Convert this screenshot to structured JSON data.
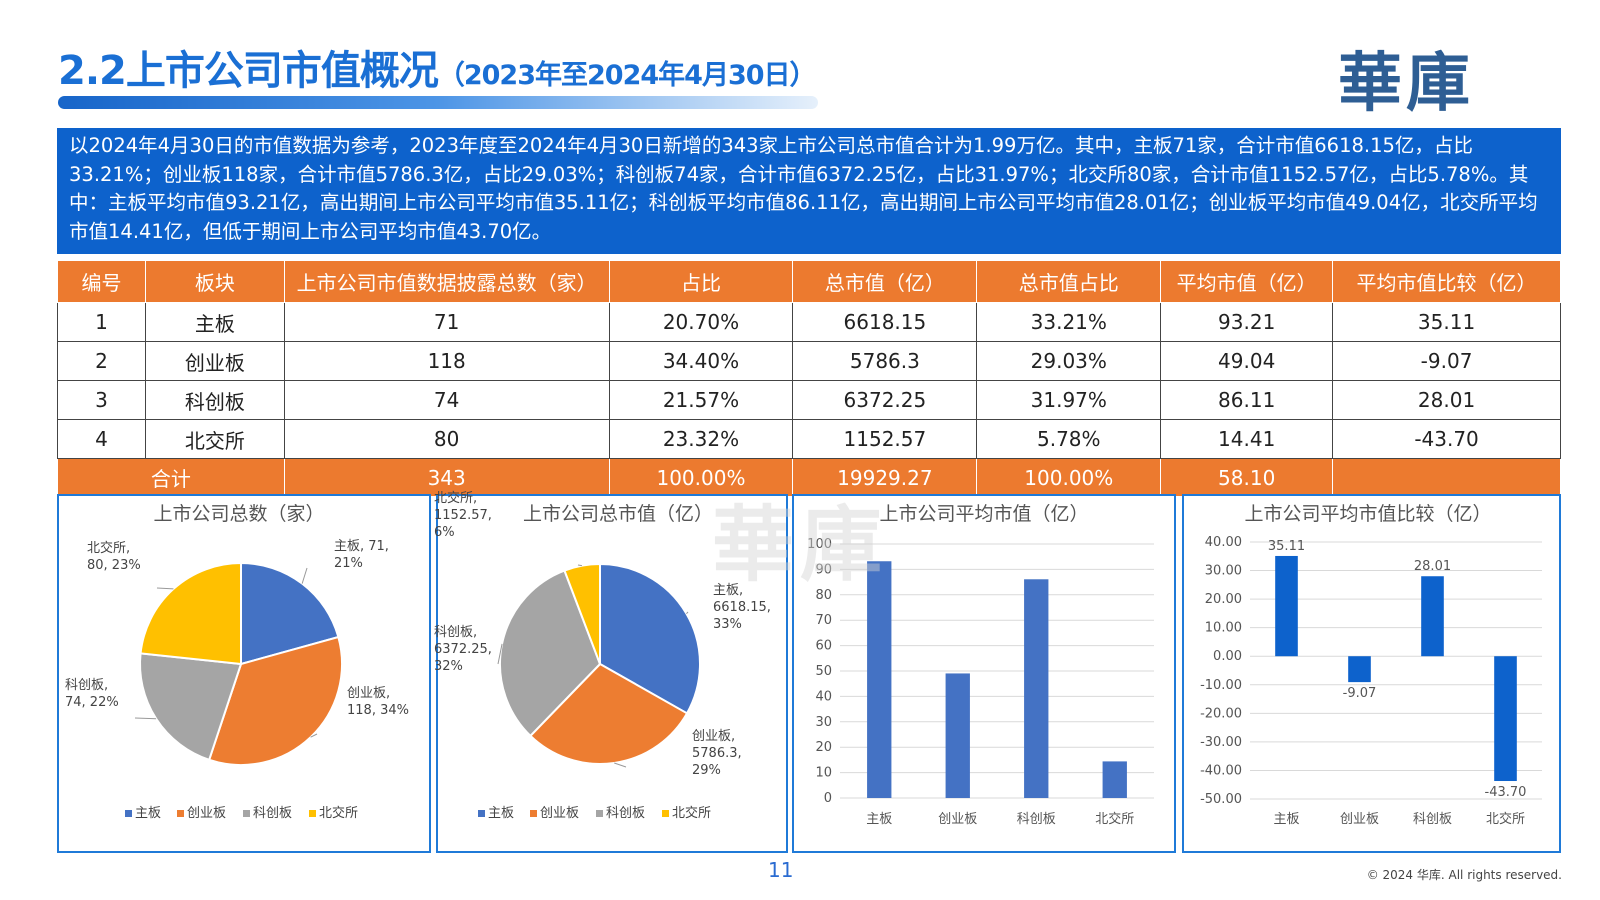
{
  "header": {
    "title": "2.2上市公司市值概况",
    "subtitle": "（2023年至2024年4月30日）",
    "logo": "華庫"
  },
  "summary": "以2024年4月30日的市值数据为参考，2023年度至2024年4月30日新增的343家上市公司总市值合计为1.99万亿。其中，主板71家，合计市值6618.15亿，占比33.21%；创业板118家，合计市值5786.3亿，占比29.03%；科创板74家，合计市值6372.25亿，占比31.97%；北交所80家，合计市值1152.57亿，占比5.78%。其中：主板平均市值93.21亿，高出期间上市公司平均市值35.11亿；科创板平均市值86.11亿，高出期间上市公司平均市值28.01亿；创业板平均市值49.04亿，北交所平均市值14.41亿，但低于期间上市公司平均市值43.70亿。",
  "table": {
    "headers": [
      "编号",
      "板块",
      "上市公司市值数据披露总数（家）",
      "占比",
      "总市值（亿）",
      "总市值占比",
      "平均市值（亿）",
      "平均市值比较（亿）"
    ],
    "rows": [
      [
        "1",
        "主板",
        "71",
        "20.70%",
        "6618.15",
        "33.21%",
        "93.21",
        "35.11"
      ],
      [
        "2",
        "创业板",
        "118",
        "34.40%",
        "5786.3",
        "29.03%",
        "49.04",
        "-9.07"
      ],
      [
        "3",
        "科创板",
        "74",
        "21.57%",
        "6372.25",
        "31.97%",
        "86.11",
        "28.01"
      ],
      [
        "4",
        "北交所",
        "80",
        "23.32%",
        "1152.57",
        "5.78%",
        "14.41",
        "-43.70"
      ]
    ],
    "total": [
      "合计",
      "343",
      "100.00%",
      "19929.27",
      "100.00%",
      "58.10",
      ""
    ]
  },
  "colors": {
    "blue": "#4472c4",
    "orange": "#ed7d31",
    "gray": "#a5a5a5",
    "yellow": "#ffc000",
    "bar": "#4472c4",
    "barDark": "#0d62cc",
    "accent": "#ec7a2f"
  },
  "chart_data": [
    {
      "type": "pie",
      "title": "上市公司总数（家）",
      "categories": [
        "主板",
        "创业板",
        "科创板",
        "北交所"
      ],
      "values": [
        71,
        118,
        74,
        80
      ],
      "data_labels": [
        [
          "主板, 71,",
          "21%"
        ],
        [
          "创业板,",
          "118, 34%"
        ],
        [
          "科创板,",
          "74, 22%"
        ],
        [
          "北交所,",
          "80, 23%"
        ]
      ],
      "legend": "bottom"
    },
    {
      "type": "pie",
      "title": "上市公司总市值（亿）",
      "categories": [
        "主板",
        "创业板",
        "科创板",
        "北交所"
      ],
      "values": [
        6618.15,
        5786.3,
        6372.25,
        1152.57
      ],
      "data_labels": [
        [
          "主板,",
          "6618.15,",
          "33%"
        ],
        [
          "创业板,",
          "5786.3,",
          "29%"
        ],
        [
          "科创板,",
          "6372.25,",
          "32%"
        ],
        [
          "北交所,",
          "1152.57,",
          "6%"
        ]
      ],
      "legend": "bottom"
    },
    {
      "type": "bar",
      "title": "上市公司平均市值（亿）",
      "categories": [
        "主板",
        "创业板",
        "科创板",
        "北交所"
      ],
      "values": [
        93.21,
        49.04,
        86.11,
        14.41
      ],
      "ylim": [
        0,
        100
      ],
      "yticks": [
        "0",
        "10",
        "20",
        "30",
        "40",
        "50",
        "60",
        "70",
        "80",
        "90",
        "100"
      ],
      "grid": true
    },
    {
      "type": "bar",
      "title": "上市公司平均市值比较（亿）",
      "categories": [
        "主板",
        "创业板",
        "科创板",
        "北交所"
      ],
      "values": [
        35.11,
        -9.07,
        28.01,
        -43.7
      ],
      "data_labels": [
        "35.11",
        "-9.07",
        "28.01",
        "-43.70"
      ],
      "ylim": [
        -50,
        40
      ],
      "yticks": [
        "-50.00",
        "-40.00",
        "-30.00",
        "-20.00",
        "-10.00",
        "0.00",
        "10.00",
        "20.00",
        "30.00",
        "40.00"
      ],
      "grid": true
    }
  ],
  "watermark": "華庫",
  "footer": {
    "page": "11",
    "copyright": "© 2024 华库. All rights reserved."
  }
}
